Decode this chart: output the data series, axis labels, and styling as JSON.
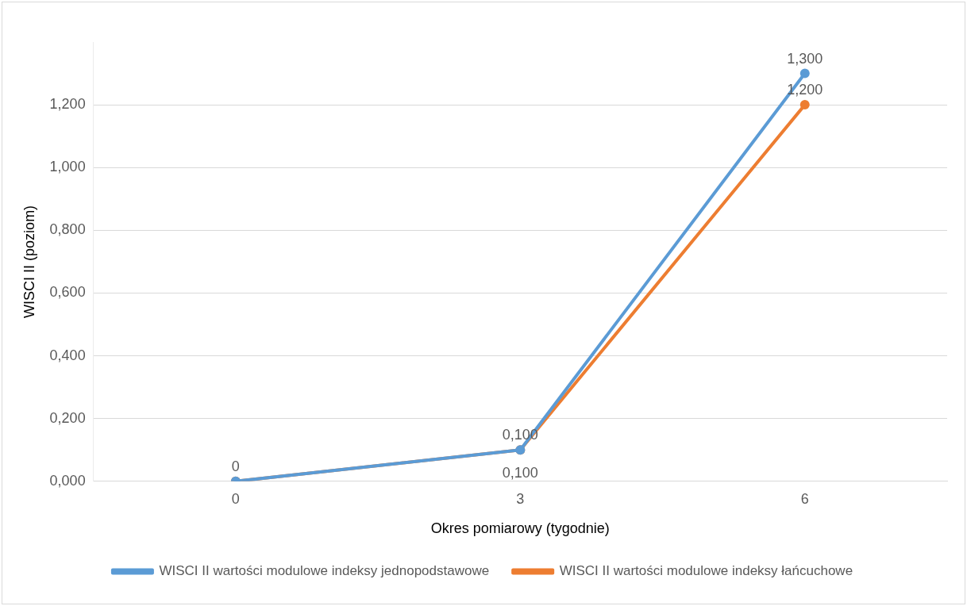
{
  "chart_data": {
    "type": "line",
    "xlabel": "Okres pomiarowy (tygodnie)",
    "ylabel": "WISCI II (poziom)",
    "categories": [
      "0",
      "3",
      "6"
    ],
    "series": [
      {
        "name": "WISCI II wartości modulowe indeksy jednopodstawowe",
        "color": "#5b9bd5",
        "values": [
          0,
          0.1,
          1.3
        ],
        "value_labels": [
          "0",
          "0,100",
          "1,300"
        ]
      },
      {
        "name": "WISCI II wartości modulowe indeksy łańcuchowe",
        "color": "#ed7d31",
        "values": [
          0,
          0.1,
          1.2
        ],
        "value_labels": [
          null,
          "0,100",
          "1,200"
        ]
      }
    ],
    "ylim": [
      0,
      1.4
    ],
    "yticks": [
      {
        "value": 0,
        "label": "0,000"
      },
      {
        "value": 0.2,
        "label": "0,200"
      },
      {
        "value": 0.4,
        "label": "0,400"
      },
      {
        "value": 0.6,
        "label": "0,600"
      },
      {
        "value": 0.8,
        "label": "0,800"
      },
      {
        "value": 1,
        "label": "1,000"
      },
      {
        "value": 1.2,
        "label": "1,200"
      }
    ],
    "grid": "y",
    "legend": "bottom",
    "marker": "circle",
    "line_style": "solid"
  }
}
